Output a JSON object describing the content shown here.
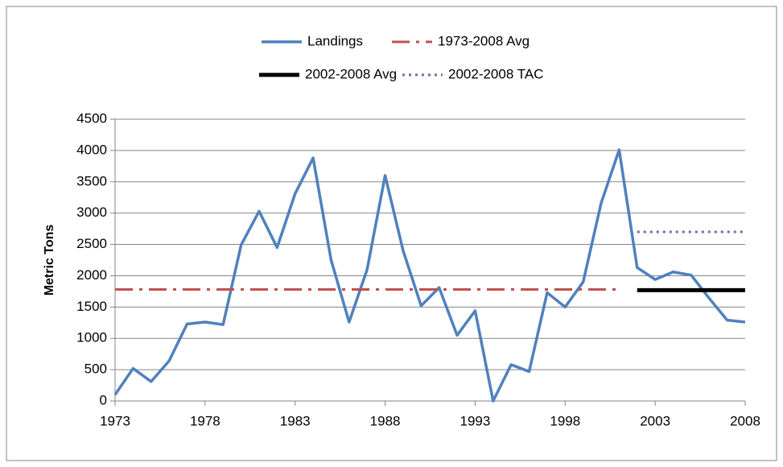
{
  "chart_data": {
    "type": "line",
    "y_label": "Metric Tons",
    "x": [
      1973,
      1974,
      1975,
      1976,
      1977,
      1978,
      1979,
      1980,
      1981,
      1982,
      1983,
      1984,
      1985,
      1986,
      1987,
      1988,
      1989,
      1990,
      1991,
      1992,
      1993,
      1994,
      1995,
      1996,
      1997,
      1998,
      1999,
      2000,
      2001,
      2002,
      2003,
      2004,
      2005,
      2006,
      2007,
      2008
    ],
    "series": [
      {
        "name": "Landings",
        "color": "#4f81bd",
        "dash": "solid",
        "width": 3.5,
        "values": [
          100,
          520,
          310,
          640,
          1230,
          1260,
          1220,
          2490,
          3030,
          2450,
          3310,
          3880,
          2250,
          1260,
          2100,
          3600,
          2400,
          1520,
          1810,
          1050,
          1440,
          0,
          580,
          470,
          1730,
          1500,
          1900,
          3160,
          4010,
          2130,
          1940,
          2060,
          2010,
          1640,
          1290,
          1260
        ]
      },
      {
        "name": "1973-2008 Avg",
        "color": "#c0504d",
        "dash": "dashdot",
        "width": 3,
        "values": [
          1780,
          1780,
          1780,
          1780,
          1780,
          1780,
          1780,
          1780,
          1780,
          1780,
          1780,
          1780,
          1780,
          1780,
          1780,
          1780,
          1780,
          1780,
          1780,
          1780,
          1780,
          1780,
          1780,
          1780,
          1780,
          1780,
          1780,
          1780,
          1780,
          null,
          null,
          null,
          null,
          null,
          null,
          null
        ]
      },
      {
        "name": "2002-2008 Avg",
        "color": "#000000",
        "dash": "solid",
        "width": 5,
        "values": [
          null,
          null,
          null,
          null,
          null,
          null,
          null,
          null,
          null,
          null,
          null,
          null,
          null,
          null,
          null,
          null,
          null,
          null,
          null,
          null,
          null,
          null,
          null,
          null,
          null,
          null,
          null,
          null,
          null,
          1770,
          1770,
          1770,
          1770,
          1770,
          1770,
          1770
        ]
      },
      {
        "name": "2002-2008 TAC",
        "color": "#8064a2",
        "dash": "dotted",
        "width": 3,
        "values": [
          null,
          null,
          null,
          null,
          null,
          null,
          null,
          null,
          null,
          null,
          null,
          null,
          null,
          null,
          null,
          null,
          null,
          null,
          null,
          null,
          null,
          null,
          null,
          null,
          null,
          null,
          null,
          null,
          null,
          2700,
          2700,
          2700,
          2700,
          2700,
          2700,
          2700
        ]
      }
    ],
    "xlim": [
      1973,
      2008
    ],
    "xticks": [
      1973,
      1978,
      1983,
      1988,
      1993,
      1998,
      2003,
      2008
    ],
    "ylim": [
      0,
      4500
    ],
    "yticks": [
      0,
      500,
      1000,
      1500,
      2000,
      2500,
      3000,
      3500,
      4000,
      4500
    ],
    "grid": true,
    "legend": "top"
  }
}
